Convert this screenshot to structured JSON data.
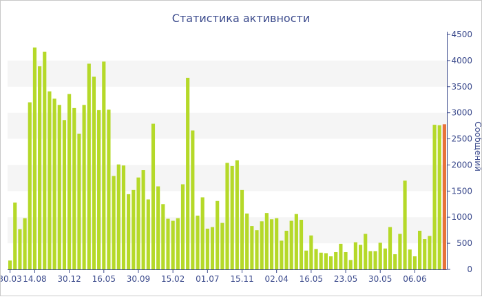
{
  "chart_data": {
    "type": "bar",
    "title": "Статистика активности",
    "ylabel": "Сообщений",
    "xlabel": "",
    "ylim": [
      0,
      4500
    ],
    "y_ticks": [
      0,
      500,
      1000,
      1500,
      2000,
      2500,
      3000,
      3500,
      4000,
      4500
    ],
    "y_axis_position": "right",
    "grid": "alternating horizontal bands",
    "x_tick_labels": [
      "30.03",
      "14.08",
      "30.12",
      "16.05",
      "30.09",
      "15.02",
      "01.07",
      "15.11",
      "02.04",
      "16.05",
      "23.05",
      "30.05",
      "06.06"
    ],
    "x_tick_bar_index": [
      0,
      5,
      12,
      19,
      26,
      33,
      40,
      47,
      54,
      61,
      68,
      75,
      82
    ],
    "bar_color": "#b5d929",
    "highlight_color": "#e8733a",
    "highlight_index": 88,
    "values": [
      170,
      1280,
      770,
      980,
      3200,
      4250,
      3890,
      4170,
      3410,
      3270,
      3150,
      2860,
      3360,
      3090,
      2600,
      3150,
      3940,
      3690,
      3050,
      3980,
      3060,
      1790,
      2010,
      1990,
      1440,
      1520,
      1760,
      1900,
      1340,
      2790,
      1590,
      1250,
      970,
      930,
      980,
      1630,
      3670,
      2660,
      1030,
      1380,
      780,
      810,
      1310,
      890,
      2040,
      1980,
      2090,
      1520,
      1070,
      830,
      750,
      920,
      1080,
      960,
      980,
      550,
      740,
      930,
      1060,
      950,
      360,
      650,
      390,
      320,
      310,
      250,
      330,
      490,
      330,
      180,
      520,
      470,
      680,
      350,
      350,
      510,
      400,
      810,
      290,
      680,
      1700,
      380,
      250,
      740,
      580,
      640,
      2770,
      2760,
      2780
    ]
  }
}
